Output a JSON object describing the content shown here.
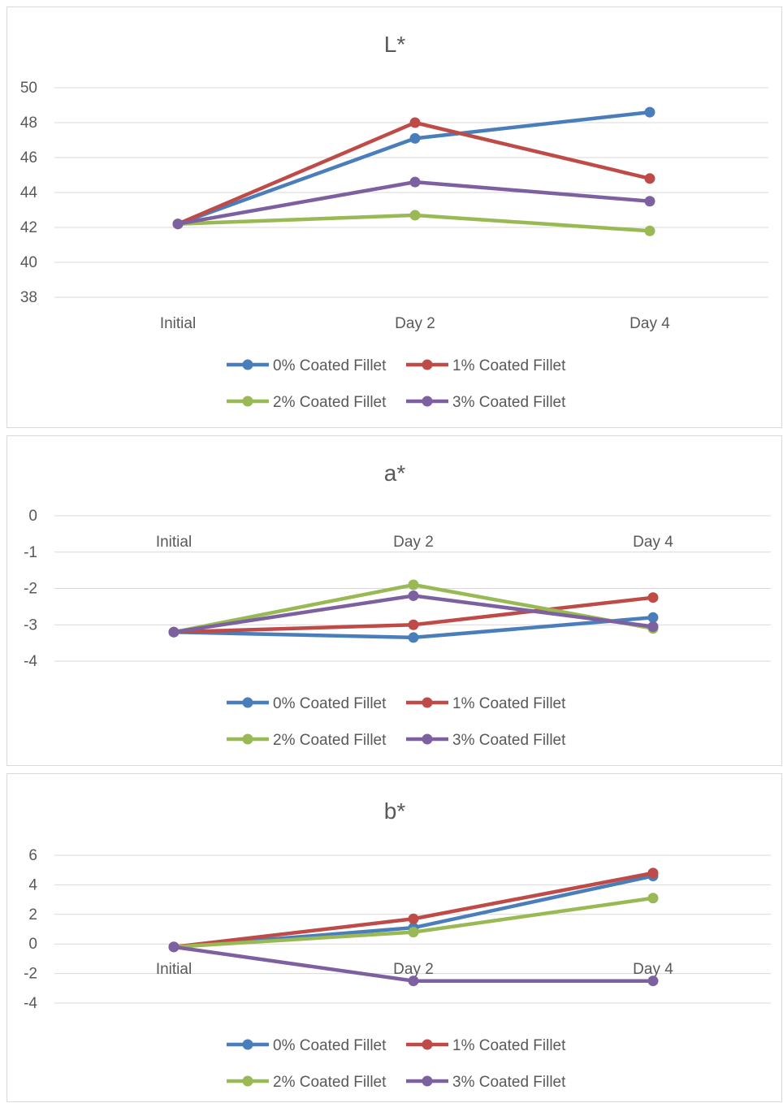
{
  "chart_data": [
    {
      "type": "line",
      "title": "L*",
      "categories": [
        "Initial",
        "Day 2",
        "Day 4"
      ],
      "ylim": [
        38,
        50
      ],
      "ystep": 2,
      "grid": true,
      "legend_position": "bottom",
      "series": [
        {
          "name": "0% Coated Fillet",
          "color": "#4a7ebb",
          "values": [
            42.2,
            47.1,
            48.6
          ]
        },
        {
          "name": "1% Coated Fillet",
          "color": "#be4b48",
          "values": [
            42.2,
            48.0,
            44.8
          ]
        },
        {
          "name": "2% Coated Fillet",
          "color": "#98b954",
          "values": [
            42.2,
            42.7,
            41.8
          ]
        },
        {
          "name": "3% Coated Fillet",
          "color": "#7d60a0",
          "values": [
            42.2,
            44.6,
            43.5
          ]
        }
      ]
    },
    {
      "type": "line",
      "title": "a*",
      "categories": [
        "Initial",
        "Day 2",
        "Day 4"
      ],
      "ylim": [
        -4,
        0
      ],
      "ystep": 1,
      "grid": true,
      "legend_position": "bottom",
      "series": [
        {
          "name": "0% Coated Fillet",
          "color": "#4a7ebb",
          "values": [
            -3.2,
            -3.35,
            -2.8
          ]
        },
        {
          "name": "1% Coated Fillet",
          "color": "#be4b48",
          "values": [
            -3.2,
            -3.0,
            -2.25
          ]
        },
        {
          "name": "2% Coated Fillet",
          "color": "#98b954",
          "values": [
            -3.2,
            -1.9,
            -3.1
          ]
        },
        {
          "name": "3% Coated Fillet",
          "color": "#7d60a0",
          "values": [
            -3.2,
            -2.2,
            -3.05
          ]
        }
      ]
    },
    {
      "type": "line",
      "title": "b*",
      "categories": [
        "Initial",
        "Day 2",
        "Day 4"
      ],
      "ylim": [
        -4,
        6
      ],
      "ystep": 2,
      "grid": true,
      "legend_position": "bottom",
      "series": [
        {
          "name": "0% Coated Fillet",
          "color": "#4a7ebb",
          "values": [
            -0.2,
            1.1,
            4.6
          ]
        },
        {
          "name": "1% Coated Fillet",
          "color": "#be4b48",
          "values": [
            -0.2,
            1.7,
            4.8
          ]
        },
        {
          "name": "2% Coated Fillet",
          "color": "#98b954",
          "values": [
            -0.2,
            0.8,
            3.1
          ]
        },
        {
          "name": "3% Coated Fillet",
          "color": "#7d60a0",
          "values": [
            -0.2,
            -2.5,
            -2.5
          ]
        }
      ]
    }
  ]
}
